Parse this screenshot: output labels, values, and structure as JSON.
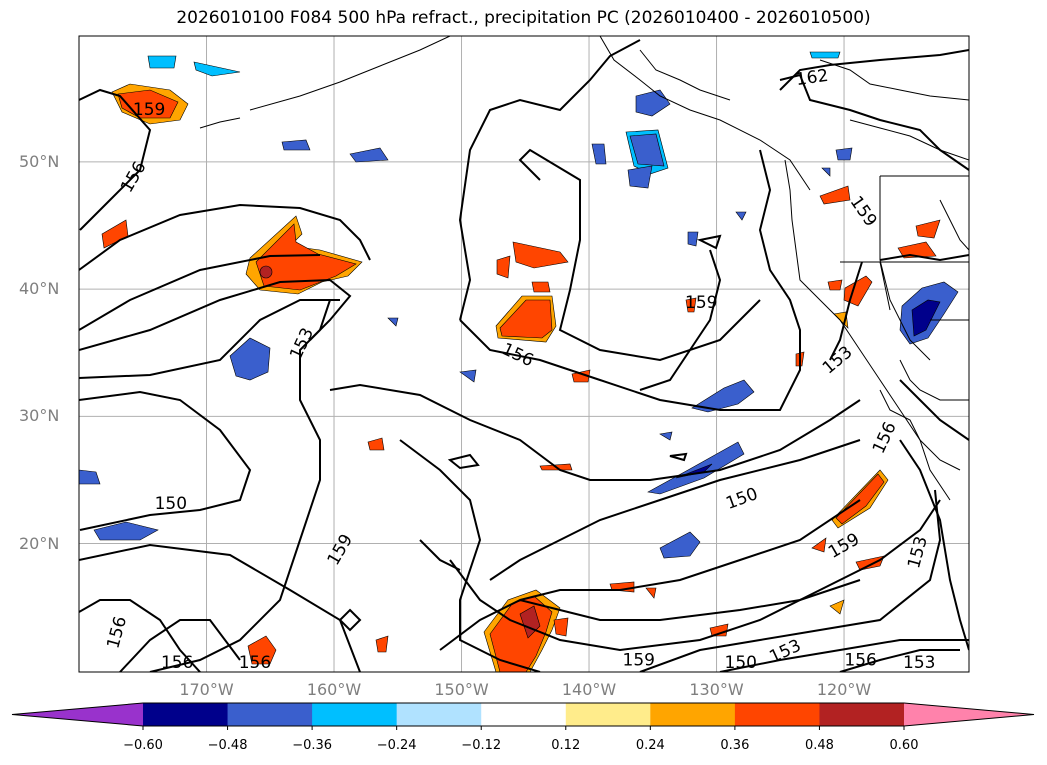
{
  "title": "2026010100 F084 500 hPa refract., precipitation PC (2026010400 - 2026010500)",
  "lat_ticks": [
    {
      "value": 50,
      "label": "50°N"
    },
    {
      "value": 40,
      "label": "40°N"
    },
    {
      "value": 30,
      "label": "30°N"
    },
    {
      "value": 20,
      "label": "20°N"
    }
  ],
  "lon_ticks": [
    {
      "value": -170,
      "label": "170°W"
    },
    {
      "value": -160,
      "label": "160°W"
    },
    {
      "value": -150,
      "label": "150°W"
    },
    {
      "value": -140,
      "label": "140°W"
    },
    {
      "value": -130,
      "label": "130°W"
    },
    {
      "value": -120,
      "label": "120°W"
    }
  ],
  "colorbar": {
    "colors": [
      "#9932cc",
      "#00008b",
      "#3a5fcd",
      "#00bfff",
      "#b0e2ff",
      "#ffffff",
      "#ffec8b",
      "#ffa500",
      "#ff4500",
      "#b22222",
      "#ff82ab"
    ],
    "labels": [
      "−0.60",
      "−0.48",
      "−0.36",
      "−0.24",
      "−0.12",
      "0.12",
      "0.24",
      "0.36",
      "0.48",
      "0.60"
    ]
  },
  "contour_labels": [
    {
      "text": "162",
      "lon": -122.5,
      "lat": 56.6,
      "rot": -8
    },
    {
      "text": "159",
      "lon": -174.5,
      "lat": 54.1,
      "rot": 0
    },
    {
      "text": "156",
      "lon": -175.7,
      "lat": 48.8,
      "rot": -60
    },
    {
      "text": "159",
      "lon": -118.5,
      "lat": 46.1,
      "rot": 55
    },
    {
      "text": "159",
      "lon": -131.2,
      "lat": 38.9,
      "rot": 0
    },
    {
      "text": "153",
      "lon": -162.5,
      "lat": 35.7,
      "rot": -65
    },
    {
      "text": "156",
      "lon": -145.6,
      "lat": 34.8,
      "rot": 25
    },
    {
      "text": "153",
      "lon": -120.5,
      "lat": 34.4,
      "rot": -40
    },
    {
      "text": "156",
      "lon": -116.8,
      "lat": 28.3,
      "rot": -65
    },
    {
      "text": "150",
      "lon": -128,
      "lat": 23.5,
      "rot": -20
    },
    {
      "text": "150",
      "lon": -172.8,
      "lat": 23.1,
      "rot": 0
    },
    {
      "text": "159",
      "lon": -159.5,
      "lat": 19.5,
      "rot": -60
    },
    {
      "text": "159",
      "lon": -120,
      "lat": 19.8,
      "rot": -30
    },
    {
      "text": "153",
      "lon": -114.2,
      "lat": 19.3,
      "rot": -75
    },
    {
      "text": "156",
      "lon": -177,
      "lat": 13,
      "rot": -75
    },
    {
      "text": "156",
      "lon": -172.3,
      "lat": 10.6,
      "rot": 0
    },
    {
      "text": "156",
      "lon": -166.2,
      "lat": 10.6,
      "rot": 0
    },
    {
      "text": "159",
      "lon": -136.1,
      "lat": 10.8,
      "rot": 0
    },
    {
      "text": "150",
      "lon": -128.1,
      "lat": 10.6,
      "rot": 0
    },
    {
      "text": "153",
      "lon": -124.6,
      "lat": 11.5,
      "rot": -25
    },
    {
      "text": "156",
      "lon": -118.7,
      "lat": 10.8,
      "rot": 0
    },
    {
      "text": "153",
      "lon": -114.1,
      "lat": 10.6,
      "rot": 0
    }
  ]
}
